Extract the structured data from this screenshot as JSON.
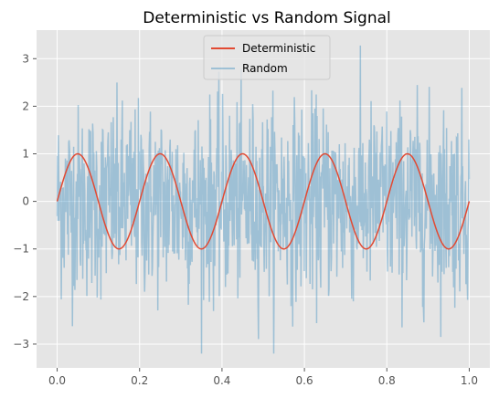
{
  "chart_data": {
    "type": "line",
    "title": "Deterministic vs Random Signal",
    "xlabel": "",
    "ylabel": "",
    "xlim": [
      -0.05,
      1.05
    ],
    "ylim": [
      -3.5,
      3.6
    ],
    "xticks": [
      0.0,
      0.2,
      0.4,
      0.6,
      0.8,
      1.0
    ],
    "xtick_labels": [
      "0.0",
      "0.2",
      "0.4",
      "0.6",
      "0.8",
      "1.0"
    ],
    "yticks": [
      -3,
      -2,
      -1,
      0,
      1,
      2,
      3
    ],
    "ytick_labels": [
      "−3",
      "−2",
      "−1",
      "0",
      "1",
      "2",
      "3"
    ],
    "grid": true,
    "legend_position": "upper-center",
    "series": [
      {
        "name": "Deterministic",
        "color": "#E24A33",
        "alpha": 1.0,
        "x_range": [
          0,
          1
        ],
        "amplitude": 1,
        "frequency_cycles": 5,
        "samples": 500
      },
      {
        "name": "Random",
        "color": "#348ABD",
        "alpha": 0.4,
        "x_range": [
          0,
          1
        ],
        "samples": 1000,
        "std": 1,
        "y_range_observed": [
          -3.2,
          3.4
        ]
      }
    ]
  }
}
